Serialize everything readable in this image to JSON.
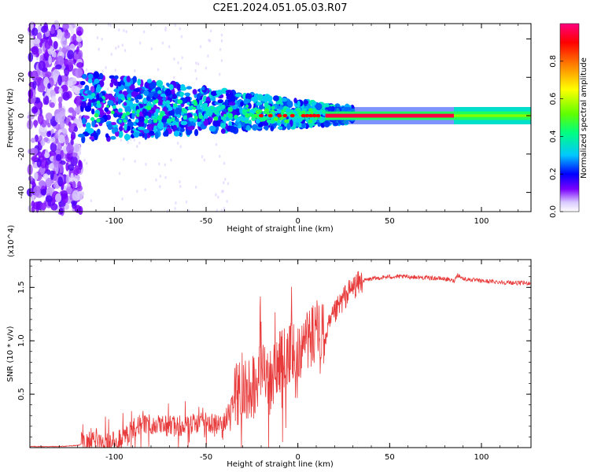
{
  "title": "C2E1.2024.051.05.03.R07",
  "colors": {
    "snr_line": "#e83a3a",
    "axis": "#000000",
    "spectrogram_background": "#ffffff",
    "colormap": [
      "#ffffff",
      "#d8c8ff",
      "#7a00ff",
      "#0000ff",
      "#00c8ff",
      "#00ff80",
      "#60ff00",
      "#ffff00",
      "#ff8000",
      "#ff0000",
      "#ff0080"
    ]
  },
  "chart_data": [
    {
      "type": "heatmap",
      "xlabel": "Height of straight line (km)",
      "ylabel": "Frequency (Hz)",
      "xlim": [
        -146,
        127
      ],
      "ylim": [
        -50,
        48
      ],
      "xticks": [
        -100,
        -50,
        0,
        50,
        100
      ],
      "yticks": [
        -40,
        -20,
        0,
        20,
        40
      ],
      "colorbar": {
        "label": "Normalized spectral amplitude",
        "range": [
          0,
          1
        ],
        "ticks": [
          0.0,
          0.2,
          0.4,
          0.6,
          0.8
        ]
      },
      "regions": [
        {
          "x_range": [
            -146,
            -118
          ],
          "freq_range": [
            -50,
            48
          ],
          "amplitude": "low, diffuse (0.0-0.1)"
        },
        {
          "x_range": [
            -118,
            -30
          ],
          "freq_range": [
            -10,
            18
          ],
          "amplitude": "mid (0.15-0.35)"
        },
        {
          "x_range": [
            -30,
            15
          ],
          "freq_range": [
            -4,
            4
          ],
          "amplitude": "mid-high (0.3-1.0)"
        },
        {
          "x_range": [
            15,
            85
          ],
          "freq_range": [
            -1,
            1
          ],
          "amplitude": "peak (~0.95)"
        },
        {
          "x_range": [
            85,
            127
          ],
          "freq_range": [
            -5,
            5
          ],
          "amplitude": "0.35-0.6"
        }
      ]
    },
    {
      "type": "line",
      "xlabel": "Height of straight line (km)",
      "ylabel": "SNR (10 * v/v)",
      "y_multiplier": "(x10^4)",
      "xlim": [
        -146,
        127
      ],
      "ylim": [
        0,
        1.76
      ],
      "xticks": [
        -100,
        -50,
        0,
        50,
        100
      ],
      "yticks": [
        0.5,
        1.0,
        1.5
      ],
      "series": [
        {
          "x": [
            -146,
            -130,
            -120,
            -115,
            -112,
            -105,
            -100,
            -95,
            -90,
            -80,
            -70,
            -60,
            -50,
            -45,
            -40,
            -35,
            -30,
            -25,
            -20,
            -15,
            -10,
            -5,
            0,
            5,
            10,
            15,
            20,
            25,
            30,
            35,
            40,
            50,
            60,
            70,
            80,
            85,
            87,
            90,
            100,
            110,
            120,
            127
          ],
          "values": [
            0.01,
            0.01,
            0.02,
            0.05,
            0.1,
            0.05,
            0.06,
            0.1,
            0.18,
            0.22,
            0.2,
            0.21,
            0.24,
            0.22,
            0.25,
            0.42,
            0.6,
            0.55,
            0.75,
            0.6,
            0.8,
            0.85,
            0.92,
            1.0,
            1.1,
            1.05,
            1.25,
            1.4,
            1.5,
            1.56,
            1.58,
            1.6,
            1.6,
            1.59,
            1.58,
            1.56,
            1.62,
            1.58,
            1.56,
            1.55,
            1.54,
            1.54
          ]
        }
      ]
    }
  ]
}
